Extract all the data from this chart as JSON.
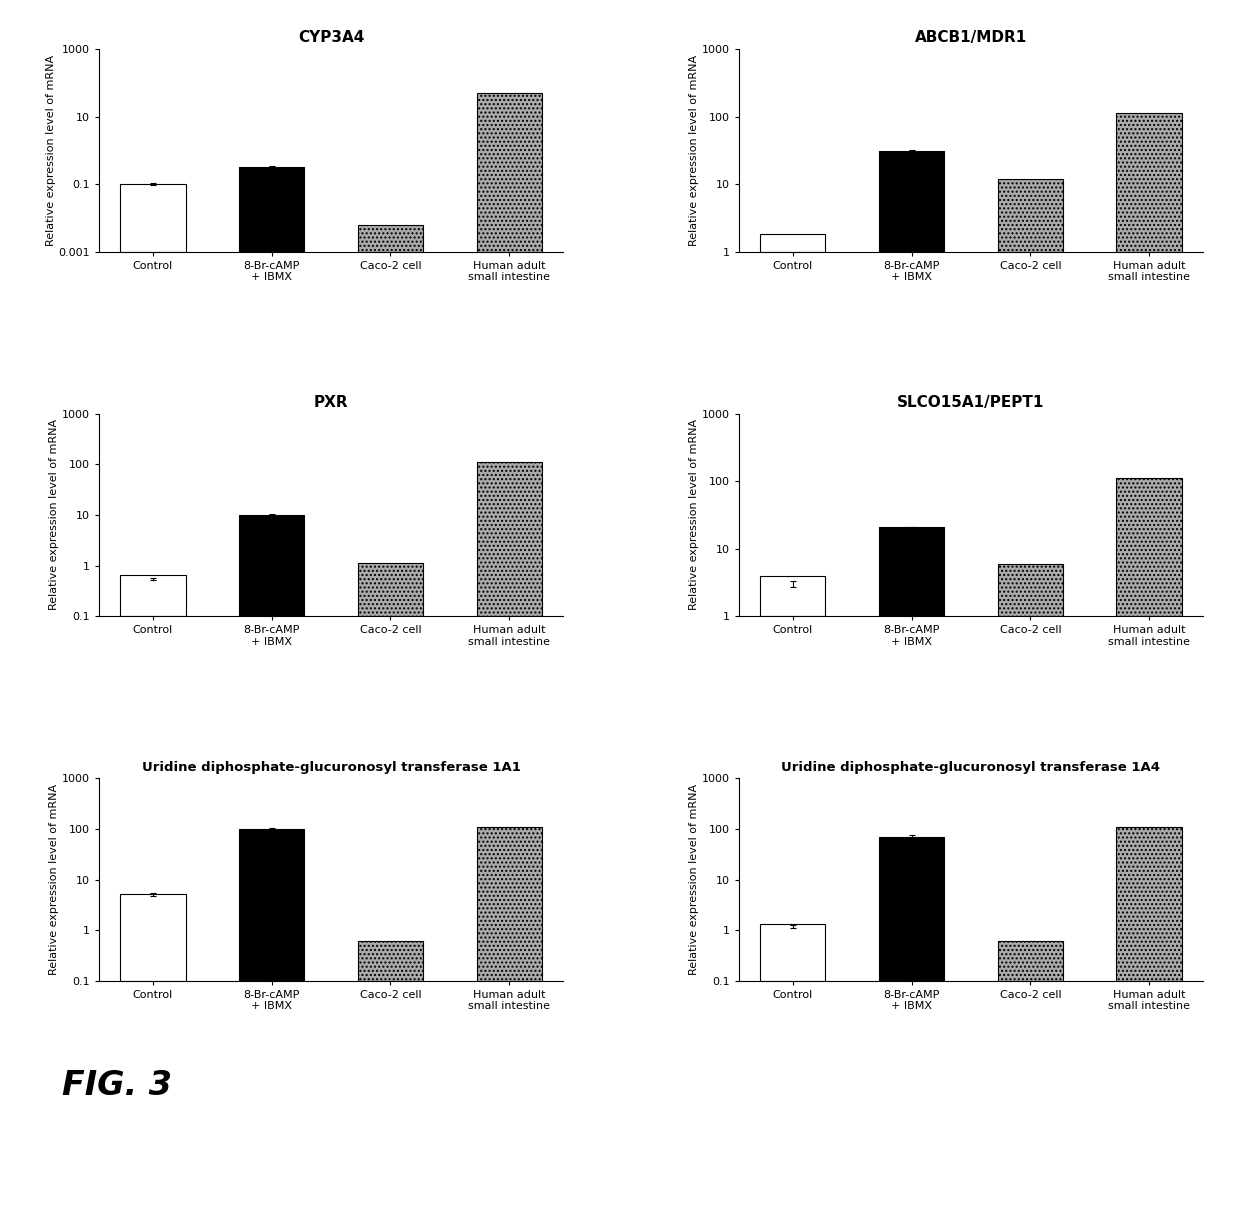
{
  "panels": [
    {
      "title": "CYP3A4",
      "values": [
        0.1,
        0.32,
        0.005,
        50
      ],
      "errors": [
        0.005,
        0.025,
        0,
        0
      ],
      "colors": [
        "white",
        "black",
        "#aaaaaa",
        "#aaaaaa"
      ],
      "hatches": [
        "",
        "",
        "....",
        "...."
      ],
      "ylim": [
        0.001,
        1000
      ],
      "yticks": [
        0.001,
        0.1,
        10,
        1000
      ],
      "ytick_labels": [
        "0.001",
        "0.1",
        "10",
        "1000"
      ]
    },
    {
      "title": "ABCB1/MDR1",
      "values": [
        0.8,
        30,
        11,
        110
      ],
      "errors": [
        0.05,
        1.5,
        0,
        0
      ],
      "colors": [
        "white",
        "black",
        "#aaaaaa",
        "#aaaaaa"
      ],
      "hatches": [
        "",
        "",
        "....",
        "...."
      ],
      "ylim": [
        1,
        1000
      ],
      "yticks": [
        1,
        10,
        100,
        1000
      ],
      "ytick_labels": [
        "1",
        "10",
        "100",
        "1000"
      ]
    },
    {
      "title": "PXR",
      "values": [
        0.55,
        10,
        1.0,
        110
      ],
      "errors": [
        0.03,
        0.5,
        0,
        0
      ],
      "colors": [
        "white",
        "black",
        "#aaaaaa",
        "#aaaaaa"
      ],
      "hatches": [
        "",
        "",
        "....",
        "...."
      ],
      "ylim": [
        0.1,
        1000
      ],
      "yticks": [
        0.1,
        1,
        10,
        100,
        1000
      ],
      "ytick_labels": [
        "0.1",
        "1",
        "10",
        "100",
        "1000"
      ]
    },
    {
      "title": "SLCO15A1/PEPT1",
      "values": [
        3.0,
        20,
        5.0,
        110
      ],
      "errors": [
        0.3,
        1.0,
        0,
        0
      ],
      "colors": [
        "white",
        "black",
        "#aaaaaa",
        "#aaaaaa"
      ],
      "hatches": [
        "",
        "",
        "....",
        "...."
      ],
      "ylim": [
        1,
        1000
      ],
      "yticks": [
        1,
        10,
        100,
        1000
      ],
      "ytick_labels": [
        "1",
        "10",
        "100",
        "1000"
      ]
    },
    {
      "title": "Uridine diphosphate-glucuronosyl transferase 1A1",
      "values": [
        5.0,
        100,
        0.5,
        110
      ],
      "errors": [
        0.3,
        3.0,
        0,
        0
      ],
      "colors": [
        "white",
        "black",
        "#aaaaaa",
        "#aaaaaa"
      ],
      "hatches": [
        "",
        "",
        "....",
        "...."
      ],
      "ylim": [
        0.1,
        1000
      ],
      "yticks": [
        0.1,
        1,
        10,
        100,
        1000
      ],
      "ytick_labels": [
        "0.1",
        "1",
        "10",
        "100",
        "1000"
      ]
    },
    {
      "title": "Uridine diphosphate-glucuronosyl transferase 1A4",
      "values": [
        1.2,
        70,
        0.5,
        110
      ],
      "errors": [
        0.08,
        5.0,
        0,
        0
      ],
      "colors": [
        "white",
        "black",
        "#aaaaaa",
        "#aaaaaa"
      ],
      "hatches": [
        "",
        "",
        "....",
        "...."
      ],
      "ylim": [
        0.1,
        1000
      ],
      "yticks": [
        0.1,
        1,
        10,
        100,
        1000
      ],
      "ytick_labels": [
        "0.1",
        "1",
        "10",
        "100",
        "1000"
      ]
    }
  ],
  "categories": [
    "Control",
    "8-Br-cAMP\n+ IBMX",
    "Caco-2 cell",
    "Human adult\nsmall intestine"
  ],
  "ylabel": "Relative expression level of mRNA",
  "fig_label": "FIG. 3",
  "background_color": "#ffffff",
  "bar_width": 0.55,
  "title_fontsize": 11,
  "ylabel_fontsize": 8,
  "tick_fontsize": 8,
  "xtick_fontsize": 8,
  "fig_label_fontsize": 24
}
